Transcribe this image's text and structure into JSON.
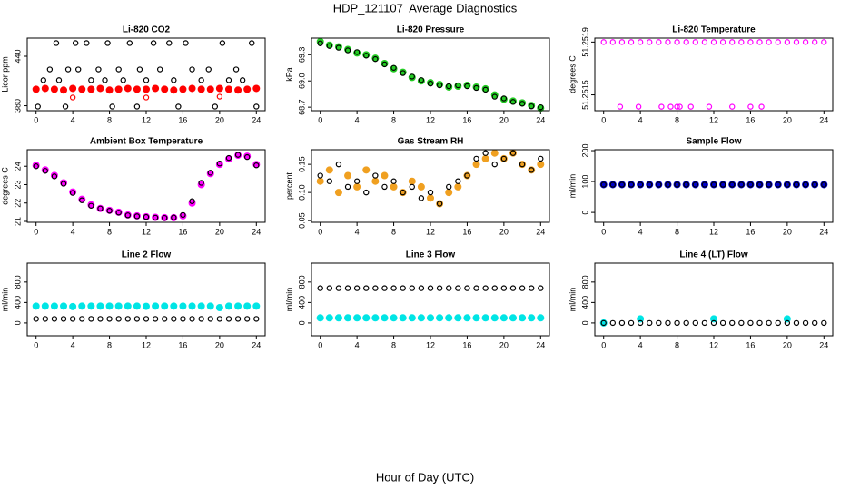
{
  "title": "HDP_121107  Average Diagnostics",
  "xlabel": "Hour of Day (UTC)",
  "chart_data": [
    {
      "type": "scatter",
      "title": "Li-820 CO2",
      "ylabel": "Licor ppm",
      "xlim": [
        -0.96,
        24.96
      ],
      "xticks": [
        0,
        4,
        8,
        12,
        16,
        20,
        24
      ],
      "ylim": [
        374,
        462
      ],
      "yticks": [
        380,
        440
      ],
      "x": [
        0,
        1,
        2,
        3,
        4,
        5,
        6,
        7,
        8,
        9,
        10,
        11,
        12,
        13,
        14,
        15,
        16,
        17,
        18,
        19,
        20,
        21,
        22,
        23,
        24
      ],
      "series": [
        {
          "color": "#ff0000",
          "marker": "filled",
          "values": [
            400,
            401,
            400,
            399,
            401,
            400,
            400,
            401,
            399,
            400,
            401,
            400,
            400,
            401,
            400,
            399,
            400,
            401,
            400,
            400,
            401,
            400,
            399,
            400,
            401
          ]
        },
        {
          "color": "#ff0000",
          "marker": "open",
          "x": [
            4,
            12,
            20
          ],
          "values": [
            390,
            390,
            391
          ]
        },
        {
          "color": "#000000",
          "marker": "open",
          "x": [
            0.2,
            0.8,
            1.5,
            2.2,
            2.5,
            3.2,
            3.5,
            4.3,
            4.6,
            5.5,
            6,
            6.8,
            7.5,
            7.8,
            8.3,
            9,
            9.5,
            10.2,
            11,
            11.3,
            12,
            12.8,
            13.5,
            14.5,
            15,
            15.5,
            16.3,
            17,
            18,
            18.8,
            19.5,
            20.3,
            21,
            21.8,
            22.5,
            23.5,
            24
          ],
          "values": [
            379,
            411,
            424,
            456,
            411,
            379,
            424,
            456,
            424,
            456,
            411,
            424,
            411,
            456,
            379,
            424,
            411,
            456,
            379,
            424,
            411,
            456,
            424,
            456,
            411,
            379,
            456,
            424,
            411,
            424,
            379,
            456,
            411,
            424,
            411,
            456,
            379
          ]
        }
      ]
    },
    {
      "type": "scatter",
      "title": "Li-820 Pressure",
      "ylabel": "kPa",
      "xlim": [
        -0.96,
        24.96
      ],
      "xticks": [
        0,
        4,
        8,
        12,
        16,
        20,
        24
      ],
      "ylim": [
        68.66,
        69.49
      ],
      "yticks": [
        68.7,
        {
          "value": 69,
          "label": "69.0"
        },
        69.3
      ],
      "x": [
        0,
        1,
        2,
        3,
        4,
        5,
        6,
        7,
        8,
        9,
        10,
        11,
        12,
        13,
        14,
        15,
        16,
        17,
        18,
        19,
        20,
        21,
        22,
        23,
        24
      ],
      "series": [
        {
          "color": "#22cc22",
          "marker": "filled",
          "values": [
            69.45,
            69.41,
            69.39,
            69.36,
            69.32,
            69.3,
            69.26,
            69.2,
            69.14,
            69.1,
            69.04,
            69.0,
            68.98,
            68.96,
            68.93,
            68.94,
            68.95,
            68.93,
            68.91,
            68.84,
            68.79,
            68.77,
            68.75,
            68.72,
            68.69
          ]
        },
        {
          "color": "#000000",
          "marker": "open",
          "values": [
            69.43,
            69.4,
            69.38,
            69.35,
            69.33,
            69.29,
            69.25,
            69.19,
            69.15,
            69.09,
            69.05,
            69.01,
            68.97,
            68.95,
            68.94,
            68.95,
            68.94,
            68.92,
            68.9,
            68.82,
            68.8,
            68.76,
            68.74,
            68.71,
            68.7
          ]
        }
      ]
    },
    {
      "type": "scatter",
      "title": "Li-820 Temperature",
      "ylabel": "degrees C",
      "xlim": [
        -0.96,
        24.96
      ],
      "xticks": [
        0,
        4,
        8,
        12,
        16,
        20,
        24
      ],
      "ylim": [
        51.25138,
        51.25193
      ],
      "yticks": [
        51.2515,
        51.2519
      ],
      "x": [
        0,
        1,
        2,
        3,
        4,
        5,
        6,
        7,
        8,
        9,
        10,
        11,
        12,
        13,
        14,
        15,
        16,
        17,
        18,
        19,
        20,
        21,
        22,
        23,
        24
      ],
      "series": [
        {
          "color": "#ff00ff",
          "marker": "open",
          "values": [
            51.2519,
            51.2519,
            51.2519,
            51.2519,
            51.2519,
            51.2519,
            51.2519,
            51.2519,
            51.2519,
            51.2519,
            51.2519,
            51.2519,
            51.2519,
            51.2519,
            51.2519,
            51.2519,
            51.2519,
            51.2519,
            51.2519,
            51.2519,
            51.2519,
            51.2519,
            51.2519,
            51.2519,
            51.2519
          ]
        },
        {
          "color": "#ff00ff",
          "marker": "open",
          "x": [
            1.8,
            3.8,
            6.3,
            7.3,
            8.0,
            8.3,
            9.5,
            11.5,
            14,
            16,
            17.2
          ],
          "values": [
            51.25141,
            51.25141,
            51.25141,
            51.25141,
            51.25141,
            51.25141,
            51.25141,
            51.25141,
            51.25141,
            51.25141,
            51.25141
          ]
        }
      ]
    },
    {
      "type": "scatter",
      "title": "Ambient Box Temperature",
      "ylabel": "degrees C",
      "xlim": [
        -0.96,
        24.96
      ],
      "xticks": [
        0,
        4,
        8,
        12,
        16,
        20,
        24
      ],
      "ylim": [
        20.95,
        24.9
      ],
      "yticks": [
        21,
        22,
        23,
        24
      ],
      "x": [
        0,
        1,
        2,
        3,
        4,
        5,
        6,
        7,
        8,
        9,
        10,
        11,
        12,
        13,
        14,
        15,
        16,
        17,
        18,
        19,
        20,
        21,
        22,
        23,
        24
      ],
      "series": [
        {
          "color": "#ff00ff",
          "marker": "filled",
          "values": [
            24.05,
            23.8,
            23.5,
            23.1,
            22.6,
            22.2,
            21.9,
            21.7,
            21.6,
            21.5,
            21.35,
            21.3,
            21.25,
            21.22,
            21.2,
            21.2,
            21.3,
            22.0,
            23.0,
            23.6,
            24.1,
            24.4,
            24.6,
            24.55,
            24.1
          ]
        },
        {
          "color": "#000000",
          "marker": "open",
          "values": [
            24.0,
            23.75,
            23.45,
            23.05,
            22.55,
            22.15,
            21.85,
            21.7,
            21.58,
            21.48,
            21.33,
            21.28,
            21.24,
            21.2,
            21.19,
            21.21,
            21.35,
            22.1,
            23.1,
            23.65,
            24.15,
            24.45,
            24.62,
            24.5,
            24.05
          ]
        }
      ]
    },
    {
      "type": "scatter",
      "title": "Gas Stream RH",
      "ylabel": "percent",
      "xlim": [
        -0.96,
        24.96
      ],
      "xticks": [
        0,
        4,
        8,
        12,
        16,
        20,
        24
      ],
      "ylim": [
        0.047,
        0.176
      ],
      "yticks": [
        0.05,
        {
          "value": 0.1,
          "label": "0.10"
        },
        0.15
      ],
      "x": [
        0,
        1,
        2,
        3,
        4,
        5,
        6,
        7,
        8,
        9,
        10,
        11,
        12,
        13,
        14,
        15,
        16,
        17,
        18,
        19,
        20,
        21,
        22,
        23,
        24
      ],
      "series": [
        {
          "color": "#f0a020",
          "marker": "filled",
          "values": [
            0.12,
            0.14,
            0.1,
            0.13,
            0.11,
            0.14,
            0.12,
            0.13,
            0.11,
            0.1,
            0.12,
            0.11,
            0.09,
            0.08,
            0.1,
            0.11,
            0.13,
            0.15,
            0.16,
            0.17,
            0.16,
            0.17,
            0.15,
            0.14,
            0.15
          ]
        },
        {
          "color": "#000000",
          "marker": "open",
          "values": [
            0.13,
            0.12,
            0.15,
            0.11,
            0.12,
            0.1,
            0.13,
            0.11,
            0.12,
            0.1,
            0.11,
            0.09,
            0.1,
            0.08,
            0.11,
            0.12,
            0.13,
            0.16,
            0.17,
            0.15,
            0.16,
            0.17,
            0.15,
            0.14,
            0.16
          ]
        }
      ]
    },
    {
      "type": "scatter",
      "title": "Sample Flow",
      "ylabel": "ml/min",
      "xlim": [
        -0.96,
        24.96
      ],
      "xticks": [
        0,
        4,
        8,
        12,
        16,
        20,
        24
      ],
      "ylim": [
        -32,
        203
      ],
      "yticks": [
        0,
        100,
        200
      ],
      "x": [
        0,
        1,
        2,
        3,
        4,
        5,
        6,
        7,
        8,
        9,
        10,
        11,
        12,
        13,
        14,
        15,
        16,
        17,
        18,
        19,
        20,
        21,
        22,
        23,
        24
      ],
      "series": [
        {
          "color": "#0000cc",
          "marker": "filled",
          "values": [
            90,
            90,
            90,
            90,
            90,
            90,
            90,
            90,
            90,
            90,
            90,
            90,
            90,
            90,
            90,
            90,
            90,
            90,
            90,
            90,
            90,
            90,
            90,
            90,
            90
          ]
        },
        {
          "color": "#000000",
          "marker": "open",
          "values": [
            90,
            90,
            90,
            90,
            90,
            90,
            90,
            90,
            90,
            90,
            90,
            90,
            90,
            90,
            90,
            90,
            90,
            90,
            90,
            90,
            90,
            90,
            90,
            90,
            90
          ]
        }
      ]
    },
    {
      "type": "scatter",
      "title": "Line 2 Flow",
      "ylabel": "ml/min",
      "xlim": [
        -0.96,
        24.96
      ],
      "xticks": [
        0,
        4,
        8,
        12,
        16,
        20,
        24
      ],
      "ylim": [
        -250,
        1170
      ],
      "yticks": [
        0,
        400,
        800
      ],
      "x": [
        0,
        1,
        2,
        3,
        4,
        5,
        6,
        7,
        8,
        9,
        10,
        11,
        12,
        13,
        14,
        15,
        16,
        17,
        18,
        19,
        20,
        21,
        22,
        23,
        24
      ],
      "series": [
        {
          "color": "#00e5e5",
          "marker": "filled",
          "values": [
            330,
            330,
            330,
            330,
            320,
            330,
            330,
            330,
            330,
            330,
            330,
            330,
            325,
            330,
            330,
            330,
            330,
            330,
            330,
            330,
            300,
            330,
            330,
            330,
            330
          ]
        },
        {
          "color": "#000000",
          "marker": "open",
          "values": [
            80,
            80,
            80,
            80,
            80,
            80,
            80,
            80,
            80,
            80,
            80,
            80,
            80,
            80,
            80,
            80,
            80,
            80,
            80,
            80,
            80,
            80,
            80,
            80,
            80
          ]
        }
      ]
    },
    {
      "type": "scatter",
      "title": "Line 3 Flow",
      "ylabel": "ml/min",
      "xlim": [
        -0.96,
        24.96
      ],
      "xticks": [
        0,
        4,
        8,
        12,
        16,
        20,
        24
      ],
      "ylim": [
        -250,
        1170
      ],
      "yticks": [
        0,
        400,
        800
      ],
      "x": [
        0,
        1,
        2,
        3,
        4,
        5,
        6,
        7,
        8,
        9,
        10,
        11,
        12,
        13,
        14,
        15,
        16,
        17,
        18,
        19,
        20,
        21,
        22,
        23,
        24
      ],
      "series": [
        {
          "color": "#00e5e5",
          "marker": "filled",
          "values": [
            100,
            100,
            100,
            100,
            100,
            100,
            100,
            100,
            100,
            100,
            100,
            100,
            100,
            100,
            100,
            100,
            100,
            100,
            100,
            100,
            100,
            100,
            100,
            100,
            100
          ]
        },
        {
          "color": "#000000",
          "marker": "open",
          "values": [
            680,
            680,
            680,
            680,
            680,
            680,
            680,
            680,
            680,
            680,
            680,
            680,
            680,
            680,
            680,
            680,
            680,
            680,
            680,
            680,
            680,
            680,
            680,
            680,
            680
          ]
        }
      ]
    },
    {
      "type": "scatter",
      "title": "Line 4 (LT) Flow",
      "ylabel": "ml/min",
      "xlim": [
        -0.96,
        24.96
      ],
      "xticks": [
        0,
        4,
        8,
        12,
        16,
        20,
        24
      ],
      "ylim": [
        -250,
        1170
      ],
      "yticks": [
        0,
        400,
        800
      ],
      "x": [
        0,
        1,
        2,
        3,
        4,
        5,
        6,
        7,
        8,
        9,
        10,
        11,
        12,
        13,
        14,
        15,
        16,
        17,
        18,
        19,
        20,
        21,
        22,
        23,
        24
      ],
      "series": [
        {
          "color": "#00e5e5",
          "marker": "filled",
          "x": [
            0,
            4,
            12,
            20
          ],
          "values": [
            0,
            80,
            80,
            80
          ]
        },
        {
          "color": "#000000",
          "marker": "open",
          "values": [
            0,
            0,
            0,
            0,
            0,
            0,
            0,
            0,
            0,
            0,
            0,
            0,
            0,
            0,
            0,
            0,
            0,
            0,
            0,
            0,
            0,
            0,
            0,
            0,
            0
          ]
        }
      ]
    }
  ]
}
